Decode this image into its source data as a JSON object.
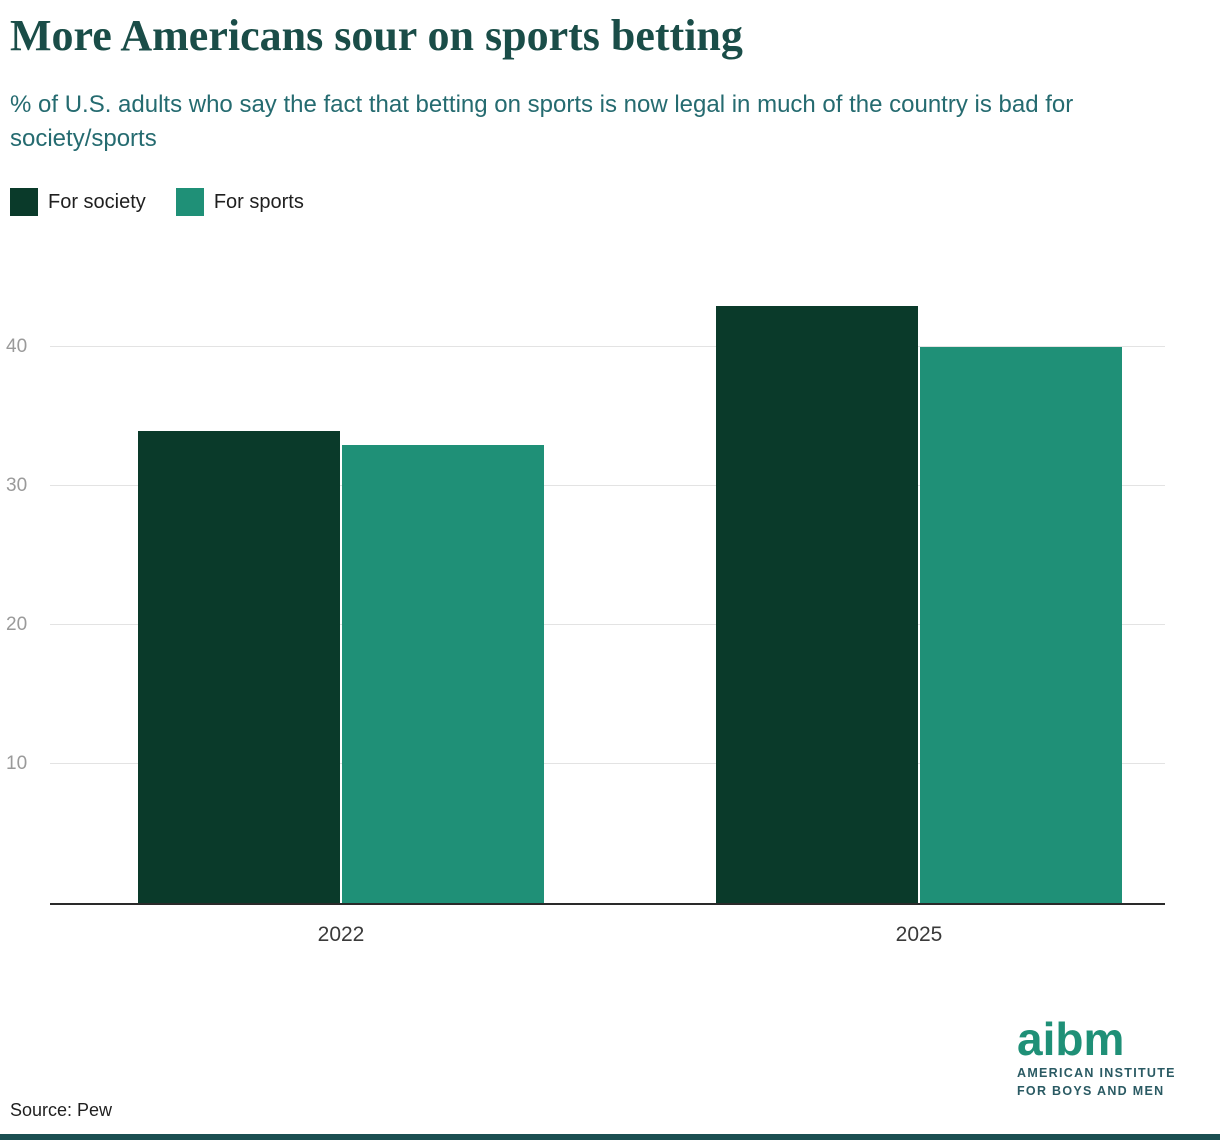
{
  "page": {
    "title": "More Americans sour on sports betting",
    "subtitle": "% of U.S. adults who say the fact that betting on sports is now legal in much of the country is bad for society/sports",
    "source": "Source: Pew"
  },
  "logo": {
    "wordmark": "aibm",
    "line1": "AMERICAN INSTITUTE",
    "line2": "FOR BOYS AND MEN"
  },
  "colors": {
    "title": "#1a4d48",
    "subtitle": "#256b70",
    "bar_society": "#0a3a2a",
    "bar_sports": "#1f9077",
    "logo_teal": "#1f9077",
    "logo_dark": "#2a5a63",
    "accent_strip": "#1b4f52"
  },
  "chart_data": {
    "type": "bar",
    "categories": [
      "2022",
      "2025"
    ],
    "series": [
      {
        "name": "For society",
        "color": "#0a3a2a",
        "values": [
          34,
          43
        ]
      },
      {
        "name": "For sports",
        "color": "#1f9077",
        "values": [
          33,
          40
        ]
      }
    ],
    "title": "More Americans sour on sports betting",
    "subtitle": "% of U.S. adults who say the fact that betting on sports is now legal in much of the country is bad for society/sports",
    "xlabel": "",
    "ylabel": "",
    "yticks": [
      10,
      20,
      30,
      40
    ],
    "ylim": [
      0,
      45
    ],
    "grid": true,
    "legend_position": "top-left"
  }
}
